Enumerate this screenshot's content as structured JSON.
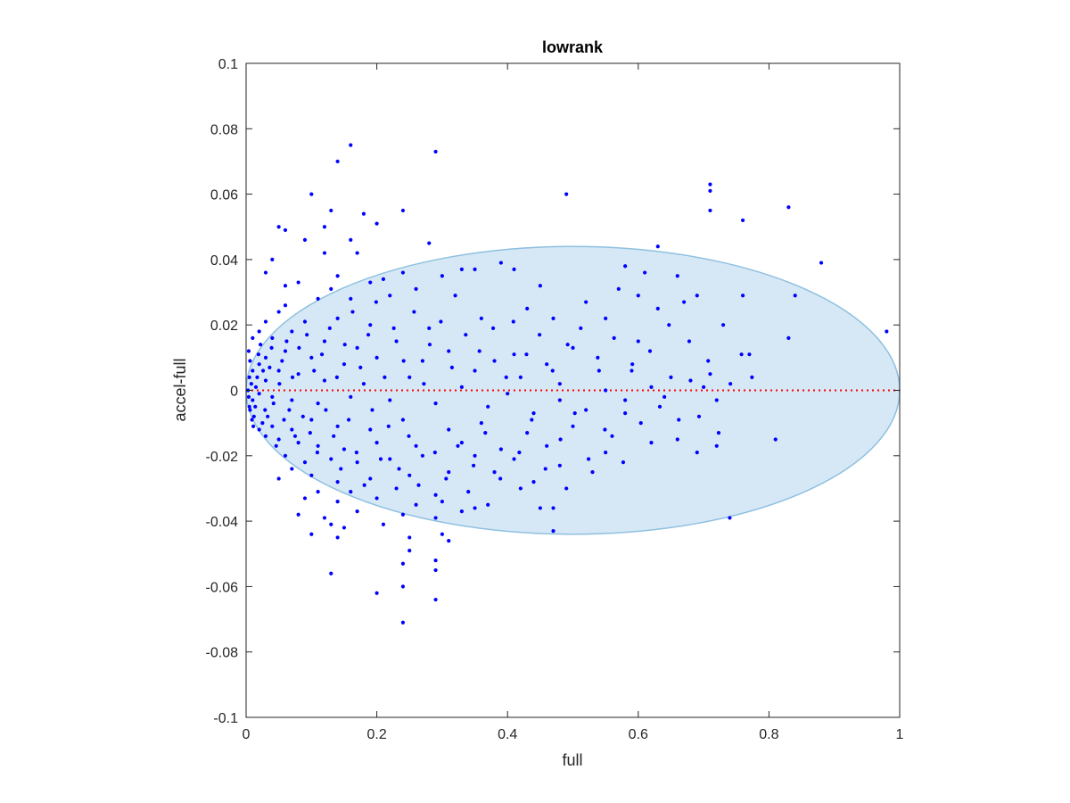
{
  "chart_data": {
    "type": "scatter",
    "title": "lowrank",
    "xlabel": "full",
    "ylabel": "accel-full",
    "xlim": [
      0,
      1
    ],
    "ylim": [
      -0.1,
      0.1
    ],
    "xticks": [
      {
        "value": 0,
        "label": "0"
      },
      {
        "value": 0.2,
        "label": "0.2"
      },
      {
        "value": 0.4,
        "label": "0.4"
      },
      {
        "value": 0.6,
        "label": "0.6"
      },
      {
        "value": 0.8,
        "label": "0.8"
      },
      {
        "value": 1,
        "label": "1"
      }
    ],
    "yticks": [
      {
        "value": 0.1,
        "label": "0.1"
      },
      {
        "value": 0.08,
        "label": "0.08"
      },
      {
        "value": 0.06,
        "label": "0.06"
      },
      {
        "value": 0.04,
        "label": "0.04"
      },
      {
        "value": 0.02,
        "label": "0.02"
      },
      {
        "value": 0,
        "label": "0"
      },
      {
        "value": -0.02,
        "label": "-0.02"
      },
      {
        "value": -0.04,
        "label": "-0.04"
      },
      {
        "value": -0.06,
        "label": "-0.06"
      },
      {
        "value": -0.08,
        "label": "-0.08"
      },
      {
        "value": -0.1,
        "label": "-0.1"
      }
    ],
    "grid": false,
    "box": true,
    "ellipse": {
      "cx": 0.5,
      "cy": 0.0,
      "rx": 0.5,
      "ry": 0.044,
      "fill": "#d6e8f5",
      "stroke": "#8ec0e0"
    },
    "reference_line": {
      "y": 0,
      "style": "dotted",
      "color": "#ff0000"
    },
    "point_color": "#0000ff",
    "points": [
      [
        0.16,
        0.075
      ],
      [
        0.29,
        0.073
      ],
      [
        0.14,
        0.07
      ],
      [
        0.49,
        0.06
      ],
      [
        0.1,
        0.06
      ],
      [
        0.71,
        0.063
      ],
      [
        0.71,
        0.061
      ],
      [
        0.71,
        0.055
      ],
      [
        0.83,
        0.056
      ],
      [
        0.76,
        0.052
      ],
      [
        0.13,
        0.055
      ],
      [
        0.24,
        0.055
      ],
      [
        0.18,
        0.054
      ],
      [
        0.12,
        0.05
      ],
      [
        0.2,
        0.051
      ],
      [
        0.05,
        0.05
      ],
      [
        0.06,
        0.049
      ],
      [
        0.09,
        0.046
      ],
      [
        0.16,
        0.046
      ],
      [
        0.28,
        0.045
      ],
      [
        0.63,
        0.044
      ],
      [
        0.04,
        0.04
      ],
      [
        0.88,
        0.039
      ],
      [
        0.12,
        0.042
      ],
      [
        0.17,
        0.042
      ],
      [
        0.39,
        0.039
      ],
      [
        0.35,
        0.037
      ],
      [
        0.41,
        0.037
      ],
      [
        0.33,
        0.037
      ],
      [
        0.58,
        0.038
      ],
      [
        0.66,
        0.035
      ],
      [
        0.61,
        0.036
      ],
      [
        0.24,
        0.036
      ],
      [
        0.03,
        0.036
      ],
      [
        0.14,
        0.035
      ],
      [
        0.21,
        0.034
      ],
      [
        0.3,
        0.035
      ],
      [
        0.19,
        0.033
      ],
      [
        0.45,
        0.032
      ],
      [
        0.52,
        0.027
      ],
      [
        0.57,
        0.031
      ],
      [
        0.6,
        0.029
      ],
      [
        0.69,
        0.029
      ],
      [
        0.76,
        0.029
      ],
      [
        0.84,
        0.029
      ],
      [
        0.67,
        0.027
      ],
      [
        0.63,
        0.025
      ],
      [
        0.43,
        0.025
      ],
      [
        0.32,
        0.029
      ],
      [
        0.26,
        0.031
      ],
      [
        0.13,
        0.031
      ],
      [
        0.08,
        0.033
      ],
      [
        0.06,
        0.032
      ],
      [
        0.06,
        0.026
      ],
      [
        0.11,
        0.028
      ],
      [
        0.16,
        0.028
      ],
      [
        0.22,
        0.029
      ],
      [
        0.36,
        0.022
      ],
      [
        0.47,
        0.022
      ],
      [
        0.55,
        0.022
      ],
      [
        0.73,
        0.02
      ],
      [
        0.98,
        0.018
      ],
      [
        0.83,
        0.016
      ],
      [
        0.77,
        0.011
      ],
      [
        0.6,
        0.015
      ],
      [
        0.5,
        0.013
      ],
      [
        0.41,
        0.011
      ],
      [
        0.28,
        0.019
      ],
      [
        0.19,
        0.02
      ],
      [
        0.14,
        0.022
      ],
      [
        0.09,
        0.021
      ],
      [
        0.05,
        0.024
      ],
      [
        0.03,
        0.021
      ],
      [
        0.02,
        0.018
      ],
      [
        0.01,
        0.016
      ],
      [
        0.04,
        0.016
      ],
      [
        0.07,
        0.018
      ],
      [
        0.12,
        0.015
      ],
      [
        0.17,
        0.013
      ],
      [
        0.23,
        0.015
      ],
      [
        0.31,
        0.012
      ],
      [
        0.38,
        0.009
      ],
      [
        0.46,
        0.008
      ],
      [
        0.54,
        0.006
      ],
      [
        0.59,
        0.006
      ],
      [
        0.65,
        0.004
      ],
      [
        0.71,
        0.005
      ],
      [
        0.68,
        0.003
      ],
      [
        0.7,
        0.001
      ],
      [
        0.62,
        0.001
      ],
      [
        0.55,
        0.0
      ],
      [
        0.48,
        0.002
      ],
      [
        0.42,
        0.004
      ],
      [
        0.35,
        0.006
      ],
      [
        0.27,
        0.009
      ],
      [
        0.2,
        0.01
      ],
      [
        0.15,
        0.008
      ],
      [
        0.1,
        0.01
      ],
      [
        0.06,
        0.012
      ],
      [
        0.03,
        0.01
      ],
      [
        0.02,
        0.008
      ],
      [
        0.01,
        0.006
      ],
      [
        0.005,
        0.004
      ],
      [
        0.008,
        0.002
      ],
      [
        0.015,
        0.001
      ],
      [
        0.03,
        0.003
      ],
      [
        0.05,
        0.006
      ],
      [
        0.08,
        0.005
      ],
      [
        0.12,
        0.003
      ],
      [
        0.18,
        0.002
      ],
      [
        0.25,
        0.004
      ],
      [
        0.33,
        0.001
      ],
      [
        0.4,
        -0.001
      ],
      [
        0.48,
        -0.003
      ],
      [
        0.58,
        -0.003
      ],
      [
        0.64,
        -0.002
      ],
      [
        0.72,
        -0.003
      ],
      [
        0.58,
        -0.007
      ],
      [
        0.52,
        -0.006
      ],
      [
        0.44,
        -0.007
      ],
      [
        0.37,
        -0.005
      ],
      [
        0.29,
        -0.004
      ],
      [
        0.22,
        -0.003
      ],
      [
        0.16,
        -0.002
      ],
      [
        0.11,
        -0.004
      ],
      [
        0.07,
        -0.003
      ],
      [
        0.04,
        -0.002
      ],
      [
        0.02,
        -0.001
      ],
      [
        0.01,
        -0.003
      ],
      [
        0.005,
        -0.005
      ],
      [
        0.012,
        -0.008
      ],
      [
        0.025,
        -0.01
      ],
      [
        0.04,
        -0.011
      ],
      [
        0.07,
        -0.012
      ],
      [
        0.1,
        -0.009
      ],
      [
        0.14,
        -0.011
      ],
      [
        0.19,
        -0.012
      ],
      [
        0.24,
        -0.009
      ],
      [
        0.31,
        -0.012
      ],
      [
        0.36,
        -0.01
      ],
      [
        0.43,
        -0.013
      ],
      [
        0.5,
        -0.011
      ],
      [
        0.56,
        -0.014
      ],
      [
        0.66,
        -0.015
      ],
      [
        0.72,
        -0.017
      ],
      [
        0.81,
        -0.015
      ],
      [
        0.69,
        -0.019
      ],
      [
        0.62,
        -0.016
      ],
      [
        0.55,
        -0.019
      ],
      [
        0.46,
        -0.017
      ],
      [
        0.39,
        -0.018
      ],
      [
        0.33,
        -0.016
      ],
      [
        0.26,
        -0.017
      ],
      [
        0.2,
        -0.016
      ],
      [
        0.15,
        -0.018
      ],
      [
        0.11,
        -0.017
      ],
      [
        0.08,
        -0.016
      ],
      [
        0.05,
        -0.015
      ],
      [
        0.03,
        -0.014
      ],
      [
        0.02,
        -0.012
      ],
      [
        0.06,
        -0.02
      ],
      [
        0.09,
        -0.022
      ],
      [
        0.13,
        -0.021
      ],
      [
        0.17,
        -0.022
      ],
      [
        0.22,
        -0.021
      ],
      [
        0.27,
        -0.02
      ],
      [
        0.35,
        -0.02
      ],
      [
        0.41,
        -0.021
      ],
      [
        0.48,
        -0.023
      ],
      [
        0.53,
        -0.025
      ],
      [
        0.44,
        -0.028
      ],
      [
        0.38,
        -0.025
      ],
      [
        0.31,
        -0.025
      ],
      [
        0.25,
        -0.026
      ],
      [
        0.19,
        -0.027
      ],
      [
        0.14,
        -0.028
      ],
      [
        0.1,
        -0.026
      ],
      [
        0.07,
        -0.024
      ],
      [
        0.05,
        -0.027
      ],
      [
        0.11,
        -0.031
      ],
      [
        0.16,
        -0.031
      ],
      [
        0.23,
        -0.03
      ],
      [
        0.29,
        -0.032
      ],
      [
        0.34,
        -0.031
      ],
      [
        0.42,
        -0.03
      ],
      [
        0.49,
        -0.03
      ],
      [
        0.37,
        -0.035
      ],
      [
        0.3,
        -0.034
      ],
      [
        0.26,
        -0.035
      ],
      [
        0.2,
        -0.033
      ],
      [
        0.14,
        -0.034
      ],
      [
        0.09,
        -0.033
      ],
      [
        0.08,
        -0.038
      ],
      [
        0.12,
        -0.039
      ],
      [
        0.17,
        -0.037
      ],
      [
        0.24,
        -0.038
      ],
      [
        0.29,
        -0.039
      ],
      [
        0.35,
        -0.036
      ],
      [
        0.45,
        -0.036
      ],
      [
        0.47,
        -0.036
      ],
      [
        0.74,
        -0.039
      ],
      [
        0.47,
        -0.043
      ],
      [
        0.33,
        -0.037
      ],
      [
        0.21,
        -0.041
      ],
      [
        0.15,
        -0.042
      ],
      [
        0.13,
        -0.041
      ],
      [
        0.1,
        -0.044
      ],
      [
        0.14,
        -0.045
      ],
      [
        0.3,
        -0.044
      ],
      [
        0.31,
        -0.046
      ],
      [
        0.25,
        -0.045
      ],
      [
        0.25,
        -0.049
      ],
      [
        0.29,
        -0.052
      ],
      [
        0.24,
        -0.053
      ],
      [
        0.29,
        -0.055
      ],
      [
        0.13,
        -0.056
      ],
      [
        0.24,
        -0.06
      ],
      [
        0.2,
        -0.062
      ],
      [
        0.29,
        -0.064
      ],
      [
        0.24,
        -0.071
      ],
      [
        0.004,
        0.012
      ],
      [
        0.006,
        0.009
      ],
      [
        0.003,
        0.0
      ],
      [
        0.004,
        -0.002
      ],
      [
        0.006,
        -0.006
      ],
      [
        0.009,
        -0.009
      ],
      [
        0.011,
        -0.011
      ],
      [
        0.014,
        -0.005
      ],
      [
        0.017,
        0.004
      ],
      [
        0.019,
        0.011
      ],
      [
        0.022,
        0.014
      ],
      [
        0.026,
        0.006
      ],
      [
        0.029,
        -0.006
      ],
      [
        0.033,
        -0.008
      ],
      [
        0.036,
        0.007
      ],
      [
        0.039,
        0.013
      ],
      [
        0.042,
        -0.004
      ],
      [
        0.046,
        -0.017
      ],
      [
        0.051,
        0.002
      ],
      [
        0.055,
        0.009
      ],
      [
        0.058,
        -0.009
      ],
      [
        0.062,
        0.015
      ],
      [
        0.066,
        -0.006
      ],
      [
        0.071,
        0.004
      ],
      [
        0.075,
        -0.014
      ],
      [
        0.081,
        0.013
      ],
      [
        0.087,
        -0.008
      ],
      [
        0.093,
        0.017
      ],
      [
        0.098,
        -0.013
      ],
      [
        0.104,
        0.006
      ],
      [
        0.109,
        -0.019
      ],
      [
        0.116,
        0.011
      ],
      [
        0.122,
        -0.006
      ],
      [
        0.128,
        0.019
      ],
      [
        0.134,
        -0.014
      ],
      [
        0.139,
        0.004
      ],
      [
        0.145,
        -0.024
      ],
      [
        0.151,
        0.014
      ],
      [
        0.157,
        -0.009
      ],
      [
        0.163,
        0.024
      ],
      [
        0.169,
        -0.019
      ],
      [
        0.175,
        0.007
      ],
      [
        0.181,
        -0.029
      ],
      [
        0.187,
        0.017
      ],
      [
        0.193,
        -0.006
      ],
      [
        0.199,
        0.027
      ],
      [
        0.206,
        -0.021
      ],
      [
        0.212,
        0.004
      ],
      [
        0.218,
        -0.011
      ],
      [
        0.226,
        0.019
      ],
      [
        0.234,
        -0.024
      ],
      [
        0.241,
        0.009
      ],
      [
        0.249,
        -0.014
      ],
      [
        0.257,
        0.024
      ],
      [
        0.264,
        -0.029
      ],
      [
        0.272,
        0.002
      ],
      [
        0.281,
        0.014
      ],
      [
        0.289,
        -0.019
      ],
      [
        0.298,
        0.021
      ],
      [
        0.306,
        -0.027
      ],
      [
        0.315,
        0.007
      ],
      [
        0.324,
        -0.017
      ],
      [
        0.336,
        0.017
      ],
      [
        0.348,
        -0.023
      ],
      [
        0.357,
        0.012
      ],
      [
        0.366,
        -0.013
      ],
      [
        0.378,
        0.019
      ],
      [
        0.389,
        -0.027
      ],
      [
        0.398,
        0.004
      ],
      [
        0.409,
        0.021
      ],
      [
        0.418,
        -0.019
      ],
      [
        0.429,
        0.011
      ],
      [
        0.437,
        -0.009
      ],
      [
        0.449,
        0.017
      ],
      [
        0.458,
        -0.024
      ],
      [
        0.469,
        0.006
      ],
      [
        0.481,
        -0.015
      ],
      [
        0.492,
        0.014
      ],
      [
        0.503,
        -0.007
      ],
      [
        0.512,
        0.019
      ],
      [
        0.524,
        -0.021
      ],
      [
        0.538,
        0.01
      ],
      [
        0.549,
        -0.012
      ],
      [
        0.563,
        0.016
      ],
      [
        0.577,
        -0.022
      ],
      [
        0.591,
        0.008
      ],
      [
        0.604,
        -0.01
      ],
      [
        0.618,
        0.012
      ],
      [
        0.633,
        -0.005
      ],
      [
        0.647,
        0.02
      ],
      [
        0.662,
        -0.009
      ],
      [
        0.678,
        0.015
      ],
      [
        0.693,
        -0.008
      ],
      [
        0.707,
        0.009
      ],
      [
        0.723,
        -0.013
      ],
      [
        0.741,
        0.002
      ],
      [
        0.758,
        0.011
      ],
      [
        0.774,
        0.004
      ]
    ]
  }
}
